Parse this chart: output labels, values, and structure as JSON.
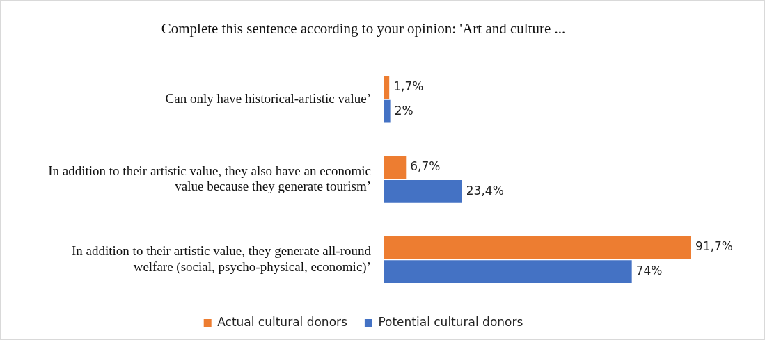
{
  "chart_data": {
    "type": "bar",
    "orientation": "horizontal",
    "title": "Complete this sentence according to your opinion: 'Art and culture ...",
    "categories": [
      "Can only have historical-artistic value’",
      "In addition to their artistic value, they also have an economic value because they generate tourism’",
      "In addition to their artistic value, they generate all-round welfare (social, psycho-physical, economic)’"
    ],
    "series": [
      {
        "name": "Actual cultural donors",
        "color": "#ed7d31",
        "values": [
          1.7,
          6.7,
          91.7
        ],
        "value_labels": [
          "1,7%",
          "6,7%",
          "91,7%"
        ]
      },
      {
        "name": "Potential cultural donors",
        "color": "#4472c4",
        "values": [
          2,
          23.4,
          74
        ],
        "value_labels": [
          "2%",
          "23,4%",
          "74%"
        ]
      }
    ],
    "legend": "bottom",
    "grid": false
  }
}
